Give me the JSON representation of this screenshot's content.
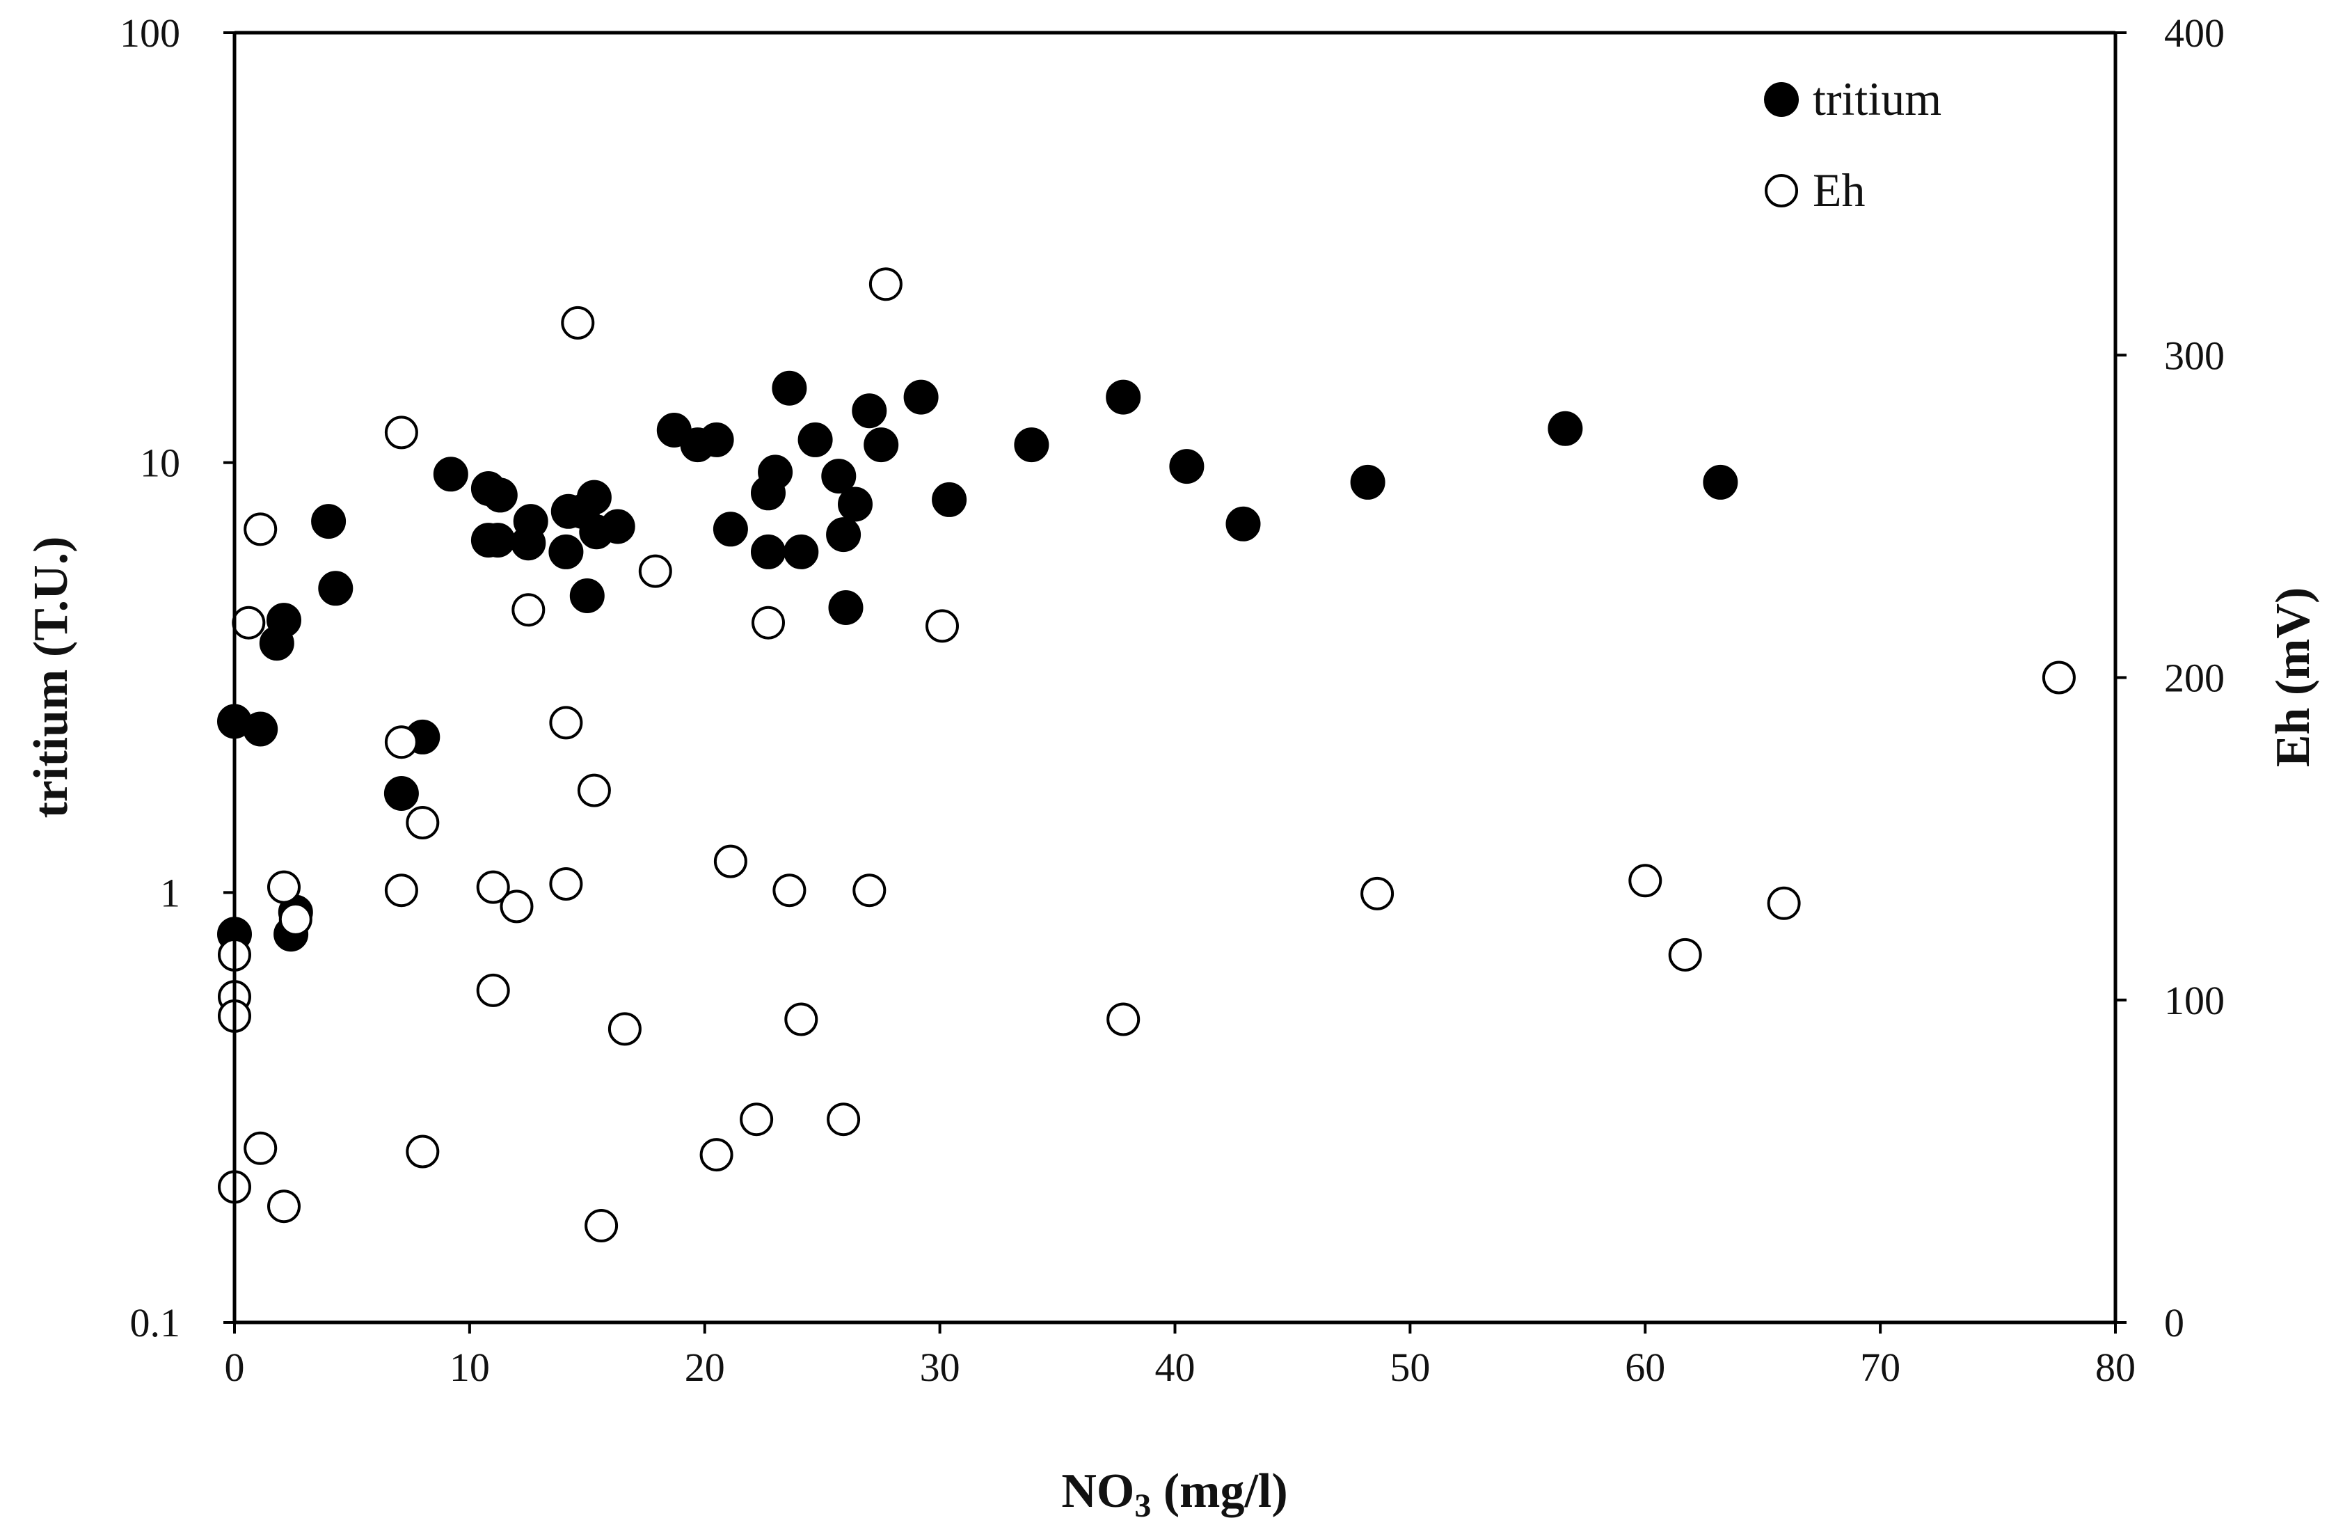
{
  "chart_data": {
    "type": "scatter",
    "title": "",
    "xlabel": "NO",
    "xlabel_subscript": "3",
    "xlabel_units": " (mg/l)",
    "ylabel": "tritium (T.U.)",
    "y2label": "Eh (mV)",
    "xlim": [
      0,
      80
    ],
    "ylim": [
      0.1,
      100
    ],
    "yscale": "log",
    "y2lim": [
      0,
      400
    ],
    "x_ticks": [
      "0",
      "10",
      "20",
      "30",
      "40",
      "50",
      "60",
      "70",
      "80"
    ],
    "y_ticks": [
      "0.1",
      "1",
      "10",
      "100"
    ],
    "y2_ticks": [
      "0",
      "100",
      "200",
      "300",
      "400"
    ],
    "grid": false,
    "legend_position": "top-right",
    "series": [
      {
        "name": "tritium",
        "marker": "filled-circle",
        "color": "#000000",
        "axis": "left",
        "points": [
          [
            0.0,
            2.5
          ],
          [
            0.0,
            0.8
          ],
          [
            1.1,
            2.4
          ],
          [
            1.8,
            3.8
          ],
          [
            2.1,
            4.3
          ],
          [
            2.4,
            0.8
          ],
          [
            2.6,
            0.9
          ],
          [
            4.0,
            7.3
          ],
          [
            4.3,
            5.1
          ],
          [
            7.1,
            1.7
          ],
          [
            8.0,
            2.3
          ],
          [
            9.2,
            9.4
          ],
          [
            10.8,
            8.7
          ],
          [
            10.8,
            6.6
          ],
          [
            11.2,
            6.6
          ],
          [
            11.3,
            8.4
          ],
          [
            12.5,
            6.5
          ],
          [
            12.6,
            7.3
          ],
          [
            14.1,
            6.2
          ],
          [
            14.2,
            7.7
          ],
          [
            14.8,
            7.7
          ],
          [
            15.0,
            4.9
          ],
          [
            15.3,
            8.3
          ],
          [
            15.4,
            6.9
          ],
          [
            16.3,
            7.1
          ],
          [
            18.7,
            11.9
          ],
          [
            19.7,
            11.0
          ],
          [
            20.5,
            11.3
          ],
          [
            21.1,
            7.0
          ],
          [
            22.7,
            6.2
          ],
          [
            22.7,
            8.5
          ],
          [
            23.0,
            9.5
          ],
          [
            23.6,
            14.9
          ],
          [
            24.1,
            6.2
          ],
          [
            24.7,
            11.3
          ],
          [
            25.7,
            9.3
          ],
          [
            25.9,
            6.8
          ],
          [
            26.0,
            4.6
          ],
          [
            26.4,
            8.0
          ],
          [
            27.0,
            13.2
          ],
          [
            27.5,
            11.0
          ],
          [
            29.2,
            14.2
          ],
          [
            30.4,
            8.2
          ],
          [
            33.9,
            11.0
          ],
          [
            37.8,
            14.2
          ],
          [
            40.5,
            9.8
          ],
          [
            42.9,
            7.2
          ],
          [
            48.2,
            9.0
          ],
          [
            56.6,
            12.0
          ],
          [
            63.2,
            9.0
          ]
        ]
      },
      {
        "name": "Eh",
        "marker": "open-circle",
        "color": "#000000",
        "axis": "right",
        "points": [
          [
            0.0,
            114
          ],
          [
            0.0,
            101
          ],
          [
            0.0,
            95
          ],
          [
            0.0,
            42
          ],
          [
            0.6,
            217
          ],
          [
            1.1,
            246
          ],
          [
            1.1,
            54
          ],
          [
            2.1,
            135
          ],
          [
            2.1,
            36
          ],
          [
            2.6,
            125
          ],
          [
            7.1,
            276
          ],
          [
            7.1,
            180
          ],
          [
            7.1,
            134
          ],
          [
            8.0,
            155
          ],
          [
            8.0,
            53
          ],
          [
            11.0,
            135
          ],
          [
            11.0,
            103
          ],
          [
            12.0,
            129
          ],
          [
            12.5,
            221
          ],
          [
            14.1,
            186
          ],
          [
            14.1,
            136
          ],
          [
            14.6,
            310
          ],
          [
            15.3,
            165
          ],
          [
            15.6,
            30
          ],
          [
            16.6,
            91
          ],
          [
            17.9,
            233
          ],
          [
            20.5,
            52
          ],
          [
            21.1,
            143
          ],
          [
            22.2,
            63
          ],
          [
            22.7,
            217
          ],
          [
            23.6,
            134
          ],
          [
            24.1,
            94
          ],
          [
            25.9,
            63
          ],
          [
            27.0,
            134
          ],
          [
            27.7,
            322
          ],
          [
            30.1,
            216
          ],
          [
            37.8,
            94
          ],
          [
            48.6,
            133
          ],
          [
            60.0,
            137
          ],
          [
            61.7,
            114
          ],
          [
            65.9,
            130
          ],
          [
            77.6,
            200
          ]
        ]
      }
    ]
  }
}
